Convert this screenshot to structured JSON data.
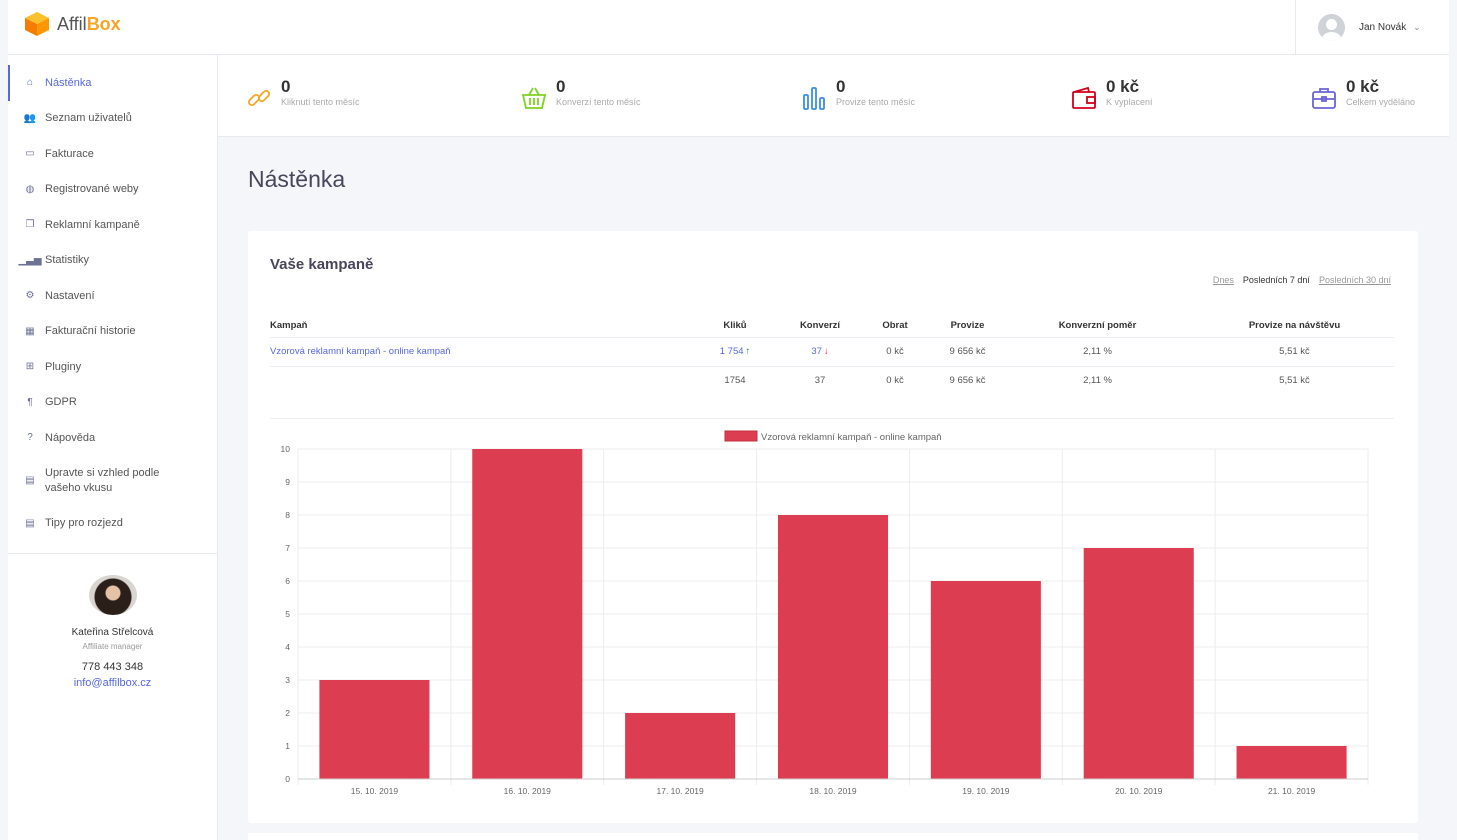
{
  "header": {
    "logo_part1": "Affil",
    "logo_part2": "Box",
    "user_name": "Jan Novák",
    "user_caret": "⌄"
  },
  "sidebar": {
    "items": [
      {
        "label": "Nástěnka",
        "icon": "home-icon",
        "glyph": "⌂"
      },
      {
        "label": "Seznam uživatelů",
        "icon": "users-icon",
        "glyph": "👥"
      },
      {
        "label": "Fakturace",
        "icon": "money-icon",
        "glyph": "▭"
      },
      {
        "label": "Registrované weby",
        "icon": "globe-icon",
        "glyph": "◍"
      },
      {
        "label": "Reklamní kampaně",
        "icon": "copy-icon",
        "glyph": "❐"
      },
      {
        "label": "Statistiky",
        "icon": "signal-icon",
        "glyph": "▁▃▅"
      },
      {
        "label": "Nastavení",
        "icon": "gear-icon",
        "glyph": "⚙"
      },
      {
        "label": "Fakturační historie",
        "icon": "calendar-icon",
        "glyph": "▦"
      },
      {
        "label": "Pluginy",
        "icon": "plus-square-icon",
        "glyph": "⊞"
      },
      {
        "label": "GDPR",
        "icon": "paragraph-icon",
        "glyph": "¶"
      },
      {
        "label": "Nápověda",
        "icon": "question-icon",
        "glyph": "?"
      },
      {
        "label": "Upravte si vzhled podle vašeho vkusu",
        "icon": "list-alt-icon",
        "glyph": "▤"
      },
      {
        "label": "Tipy pro rozjezd",
        "icon": "list-alt-icon",
        "glyph": "▤"
      }
    ],
    "manager": {
      "name": "Kateřina Střelcová",
      "role": "Affiliate manager",
      "phone": "778 443 348",
      "email": "info@affilbox.cz"
    }
  },
  "stats": [
    {
      "value": "0",
      "label": "Kliknutí tento měsíc",
      "icon": "link-icon",
      "color": "#f6a623"
    },
    {
      "value": "0",
      "label": "Konverzí tento měsíc",
      "icon": "basket-icon",
      "color": "#7ed321"
    },
    {
      "value": "0",
      "label": "Provize tento měsíc",
      "icon": "bar-chart-icon",
      "color": "#3a8fe0"
    },
    {
      "value": "0 kč",
      "label": "K vyplacení",
      "icon": "wallet-icon",
      "color": "#d0021b"
    },
    {
      "value": "0 kč",
      "label": "Celkem vyděláno",
      "icon": "briefcase-icon",
      "color": "#6b63d8"
    }
  ],
  "page": {
    "title": "Nástěnka"
  },
  "card": {
    "title": "Vaše kampaně",
    "ranges": {
      "today": "Dnes",
      "last7": "Posledních 7 dní",
      "last30": "Posledních 30 dní"
    }
  },
  "table": {
    "headers": [
      "Kampaň",
      "Kliků",
      "Konverzí",
      "Obrat",
      "Provize",
      "Konverzní poměr",
      "Provize na návštěvu"
    ],
    "row": {
      "campaign": "Vzorová reklamní kampaň - online kampaň",
      "clicks": "1 754",
      "conversions": "37",
      "revenue": "0 kč",
      "commission": "9 656 kč",
      "conv_rate": "2,11 %",
      "per_visit": "5,51 kč"
    },
    "total": {
      "clicks": "1754",
      "conversions": "37",
      "revenue": "0 kč",
      "commission": "9 656 kč",
      "conv_rate": "2,11 %",
      "per_visit": "5,51 kč"
    }
  },
  "chart_data": {
    "type": "bar",
    "categories": [
      "15. 10. 2019",
      "16. 10. 2019",
      "17. 10. 2019",
      "18. 10. 2019",
      "19. 10. 2019",
      "20. 10. 2019",
      "21. 10. 2019"
    ],
    "series": [
      {
        "name": "Vzorová reklamní kampaň - online kampaň",
        "values": [
          3,
          10,
          2,
          8,
          6,
          7,
          1
        ],
        "color": "#dc3d50"
      }
    ],
    "ylim": [
      0,
      10
    ],
    "yticks": [
      0,
      1,
      2,
      3,
      4,
      5,
      6,
      7,
      8,
      9,
      10
    ],
    "grid": true,
    "legend": "top"
  }
}
